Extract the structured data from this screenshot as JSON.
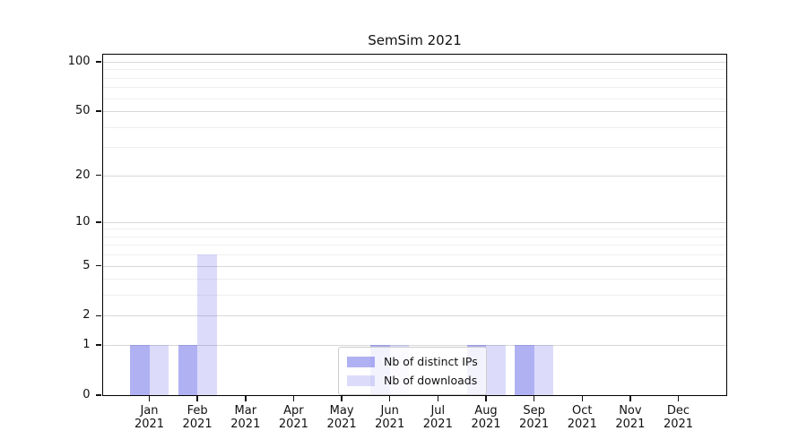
{
  "title": "SemSim 2021",
  "chart_data": {
    "type": "bar",
    "title": "SemSim 2021",
    "categories": [
      "Jan",
      "Feb",
      "Mar",
      "Apr",
      "May",
      "Jun",
      "Jul",
      "Aug",
      "Sep",
      "Oct",
      "Nov",
      "Dec"
    ],
    "year": "2021",
    "series": [
      {
        "name": "Nb of distinct IPs",
        "color": "rgba(80,82,228,0.45)",
        "values": [
          1,
          1,
          0,
          0,
          0,
          1,
          0,
          1,
          1,
          0,
          0,
          0
        ]
      },
      {
        "name": "Nb of downloads",
        "color": "rgba(80,82,228,0.20)",
        "values": [
          1,
          6,
          0,
          0,
          0,
          1,
          0,
          1,
          1,
          0,
          0,
          0
        ]
      }
    ],
    "xlabel": "",
    "ylabel": "",
    "yscale": "log10(1+x)",
    "ylim": [
      0,
      112
    ],
    "y_major_ticks": [
      0,
      1,
      2,
      5,
      10,
      20,
      50,
      100
    ],
    "y_minor_ticks": [
      3,
      4,
      6,
      7,
      8,
      9,
      30,
      40,
      60,
      70,
      80,
      90
    ],
    "grid": "horizontal, major and minor",
    "legend_position": "lower center"
  }
}
